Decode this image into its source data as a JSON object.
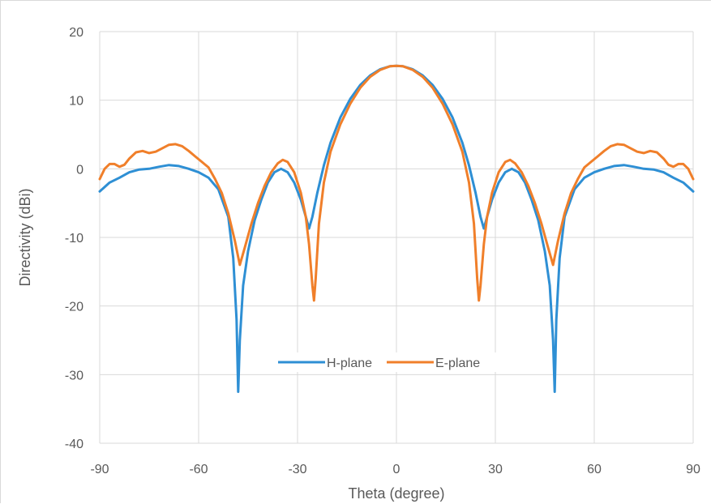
{
  "chart_data": {
    "type": "line",
    "title": "",
    "xlabel": "Theta (degree)",
    "ylabel": "Directivity (dBi)",
    "xlim": [
      -90,
      90
    ],
    "ylim": [
      -40,
      20
    ],
    "xticks": [
      -90,
      -60,
      -30,
      0,
      30,
      60,
      90
    ],
    "yticks": [
      20,
      10,
      0,
      -10,
      -20,
      -30,
      -40
    ],
    "xtick_labels": [
      "-90",
      "-60",
      "-30",
      "0",
      "30",
      "60",
      "90"
    ],
    "ytick_labels": [
      "20",
      "10",
      "0",
      "-10",
      "-20",
      "-30",
      "-40"
    ],
    "grid": true,
    "legend_position": "center-lower",
    "series": [
      {
        "name": "H-plane",
        "color": "#2e8fd4",
        "points": [
          [
            -90,
            -3.3
          ],
          [
            -87,
            -2.0
          ],
          [
            -84,
            -1.3
          ],
          [
            -81,
            -0.5
          ],
          [
            -78,
            -0.1
          ],
          [
            -75,
            0.0
          ],
          [
            -72,
            0.3
          ],
          [
            -69,
            0.55
          ],
          [
            -66,
            0.4
          ],
          [
            -63,
            0.0
          ],
          [
            -60,
            -0.5
          ],
          [
            -57,
            -1.3
          ],
          [
            -54,
            -3.0
          ],
          [
            -51,
            -7.0
          ],
          [
            -49.5,
            -13.0
          ],
          [
            -48.5,
            -22.0
          ],
          [
            -48,
            -32.5
          ],
          [
            -47.5,
            -25.0
          ],
          [
            -46.5,
            -17.0
          ],
          [
            -45,
            -12.0
          ],
          [
            -43,
            -7.5
          ],
          [
            -41,
            -4.5
          ],
          [
            -39,
            -2.0
          ],
          [
            -37,
            -0.5
          ],
          [
            -35,
            0.0
          ],
          [
            -33,
            -0.5
          ],
          [
            -31,
            -2.0
          ],
          [
            -29,
            -4.5
          ],
          [
            -27.5,
            -7.0
          ],
          [
            -26.5,
            -8.7
          ],
          [
            -25.5,
            -7.0
          ],
          [
            -24,
            -3.5
          ],
          [
            -22,
            0.5
          ],
          [
            -20,
            3.8
          ],
          [
            -17,
            7.5
          ],
          [
            -14,
            10.2
          ],
          [
            -11,
            12.2
          ],
          [
            -8,
            13.6
          ],
          [
            -5,
            14.5
          ],
          [
            -2,
            14.95
          ],
          [
            0,
            15.0
          ],
          [
            2,
            14.95
          ],
          [
            5,
            14.5
          ],
          [
            8,
            13.6
          ],
          [
            11,
            12.2
          ],
          [
            14,
            10.2
          ],
          [
            17,
            7.5
          ],
          [
            20,
            3.8
          ],
          [
            22,
            0.5
          ],
          [
            24,
            -3.5
          ],
          [
            25.5,
            -7.0
          ],
          [
            26.5,
            -8.7
          ],
          [
            27.5,
            -7.0
          ],
          [
            29,
            -4.5
          ],
          [
            31,
            -2.0
          ],
          [
            33,
            -0.5
          ],
          [
            35,
            0.0
          ],
          [
            37,
            -0.5
          ],
          [
            39,
            -2.0
          ],
          [
            41,
            -4.5
          ],
          [
            43,
            -7.5
          ],
          [
            45,
            -12.0
          ],
          [
            46.5,
            -17.0
          ],
          [
            47.5,
            -25.0
          ],
          [
            48,
            -32.5
          ],
          [
            48.5,
            -22.0
          ],
          [
            49.5,
            -13.0
          ],
          [
            51,
            -7.0
          ],
          [
            54,
            -3.0
          ],
          [
            57,
            -1.3
          ],
          [
            60,
            -0.5
          ],
          [
            63,
            0.0
          ],
          [
            66,
            0.4
          ],
          [
            69,
            0.55
          ],
          [
            72,
            0.3
          ],
          [
            75,
            0.0
          ],
          [
            78,
            -0.1
          ],
          [
            81,
            -0.5
          ],
          [
            84,
            -1.3
          ],
          [
            87,
            -2.0
          ],
          [
            90,
            -3.3
          ]
        ]
      },
      {
        "name": "E-plane",
        "color": "#f07f2a",
        "points": [
          [
            -90,
            -1.5
          ],
          [
            -88.5,
            0.0
          ],
          [
            -87,
            0.7
          ],
          [
            -85.5,
            0.7
          ],
          [
            -84,
            0.3
          ],
          [
            -82.5,
            0.6
          ],
          [
            -81,
            1.5
          ],
          [
            -79,
            2.4
          ],
          [
            -77,
            2.6
          ],
          [
            -75,
            2.3
          ],
          [
            -73,
            2.5
          ],
          [
            -71,
            3.0
          ],
          [
            -69,
            3.5
          ],
          [
            -67,
            3.6
          ],
          [
            -65,
            3.3
          ],
          [
            -63,
            2.6
          ],
          [
            -61,
            1.8
          ],
          [
            -59,
            1.0
          ],
          [
            -57,
            0.2
          ],
          [
            -55,
            -1.5
          ],
          [
            -53,
            -3.5
          ],
          [
            -51,
            -6.5
          ],
          [
            -49,
            -10.5
          ],
          [
            -47.5,
            -14.0
          ],
          [
            -46,
            -11.5
          ],
          [
            -44,
            -8.0
          ],
          [
            -42,
            -5.0
          ],
          [
            -40,
            -2.5
          ],
          [
            -38,
            -0.5
          ],
          [
            -36,
            0.8
          ],
          [
            -34.5,
            1.3
          ],
          [
            -33,
            1.0
          ],
          [
            -31,
            -0.5
          ],
          [
            -29,
            -3.5
          ],
          [
            -27.5,
            -7.0
          ],
          [
            -26.5,
            -11.0
          ],
          [
            -25.5,
            -17.0
          ],
          [
            -25,
            -19.2
          ],
          [
            -24.5,
            -16.0
          ],
          [
            -23.5,
            -8.0
          ],
          [
            -22,
            -2.0
          ],
          [
            -20,
            2.5
          ],
          [
            -17,
            6.5
          ],
          [
            -14,
            9.5
          ],
          [
            -11,
            11.8
          ],
          [
            -8,
            13.4
          ],
          [
            -5,
            14.4
          ],
          [
            -2,
            14.95
          ],
          [
            0,
            15.0
          ],
          [
            2,
            14.95
          ],
          [
            5,
            14.4
          ],
          [
            8,
            13.4
          ],
          [
            11,
            11.8
          ],
          [
            14,
            9.5
          ],
          [
            17,
            6.5
          ],
          [
            20,
            2.5
          ],
          [
            22,
            -2.0
          ],
          [
            23.5,
            -8.0
          ],
          [
            24.5,
            -16.0
          ],
          [
            25,
            -19.2
          ],
          [
            25.5,
            -17.0
          ],
          [
            26.5,
            -11.0
          ],
          [
            27.5,
            -7.0
          ],
          [
            29,
            -3.5
          ],
          [
            31,
            -0.5
          ],
          [
            33,
            1.0
          ],
          [
            34.5,
            1.3
          ],
          [
            36,
            0.8
          ],
          [
            38,
            -0.5
          ],
          [
            40,
            -2.5
          ],
          [
            42,
            -5.0
          ],
          [
            44,
            -8.0
          ],
          [
            46,
            -11.5
          ],
          [
            47.5,
            -14.0
          ],
          [
            49,
            -10.5
          ],
          [
            51,
            -6.5
          ],
          [
            53,
            -3.5
          ],
          [
            55,
            -1.5
          ],
          [
            57,
            0.2
          ],
          [
            59,
            1.0
          ],
          [
            61,
            1.8
          ],
          [
            63,
            2.6
          ],
          [
            65,
            3.3
          ],
          [
            67,
            3.6
          ],
          [
            69,
            3.5
          ],
          [
            71,
            3.0
          ],
          [
            73,
            2.5
          ],
          [
            75,
            2.3
          ],
          [
            77,
            2.6
          ],
          [
            79,
            2.4
          ],
          [
            81,
            1.5
          ],
          [
            82.5,
            0.6
          ],
          [
            84,
            0.3
          ],
          [
            85.5,
            0.7
          ],
          [
            87,
            0.7
          ],
          [
            88.5,
            0.0
          ],
          [
            90,
            -1.5
          ]
        ]
      }
    ]
  }
}
